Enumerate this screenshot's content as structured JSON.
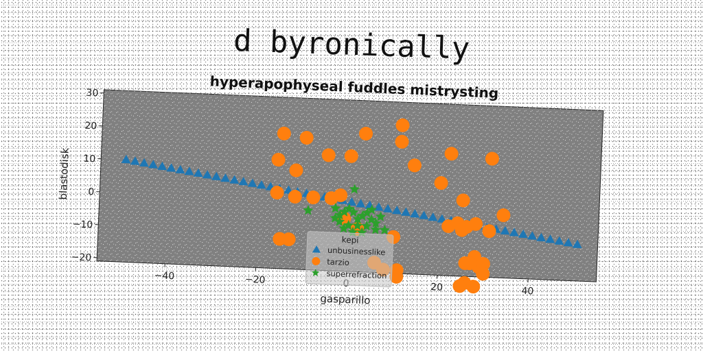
{
  "suptitle": "d byronically",
  "chart_data": {
    "type": "scatter",
    "title": "hyperapophyseal fuddles mistrysting",
    "xlabel": "gasparillo",
    "ylabel": "blastodisk",
    "xlim": [
      -55,
      55
    ],
    "ylim": [
      -21,
      31
    ],
    "xticks": [
      -40,
      -20,
      0,
      20,
      40
    ],
    "yticks": [
      -20,
      -10,
      0,
      10,
      20,
      30
    ],
    "grid": false,
    "plot_background": "#808080",
    "legend": {
      "title": "kepi",
      "placement": "lower-center"
    },
    "series": [
      {
        "name": "unbusinesslike",
        "marker": "triangle",
        "color": "#1f77b4",
        "points": [
          [
            -49.5,
            10.1
          ],
          [
            -47.5,
            9.7
          ],
          [
            -45.5,
            9.3
          ],
          [
            -43.5,
            8.9
          ],
          [
            -41.5,
            8.5
          ],
          [
            -39.5,
            8.1
          ],
          [
            -37.5,
            7.7
          ],
          [
            -35.5,
            7.3
          ],
          [
            -33.5,
            6.9
          ],
          [
            -31.5,
            6.5
          ],
          [
            -29.5,
            6.1
          ],
          [
            -27.5,
            5.7
          ],
          [
            -25.5,
            5.3
          ],
          [
            -23.5,
            4.9
          ],
          [
            -21.5,
            4.5
          ],
          [
            -19.5,
            4.1
          ],
          [
            -17.5,
            3.7
          ],
          [
            -15.5,
            3.3
          ],
          [
            -13.5,
            2.9
          ],
          [
            -11.5,
            2.5
          ],
          [
            -9.5,
            2.1
          ],
          [
            -7.5,
            1.7
          ],
          [
            -5.5,
            1.3
          ],
          [
            -3.5,
            0.9
          ],
          [
            -1.5,
            0.5
          ],
          [
            0.5,
            0.1
          ],
          [
            2.5,
            -0.3
          ],
          [
            4.5,
            -0.7
          ],
          [
            6.5,
            -1.1
          ],
          [
            8.5,
            -1.5
          ],
          [
            10.5,
            -1.9
          ],
          [
            12.5,
            -2.3
          ],
          [
            14.5,
            -2.7
          ],
          [
            16.5,
            -3.1
          ],
          [
            18.5,
            -3.5
          ],
          [
            20.5,
            -3.9
          ],
          [
            22.5,
            -4.3
          ],
          [
            24.5,
            -4.7
          ],
          [
            26.5,
            -5.1
          ],
          [
            28.5,
            -5.5
          ],
          [
            30.5,
            -5.9
          ],
          [
            32.5,
            -6.3
          ],
          [
            34.5,
            -6.7
          ],
          [
            36.5,
            -7.1
          ],
          [
            38.5,
            -7.5
          ],
          [
            40.5,
            -7.9
          ],
          [
            42.5,
            -8.3
          ],
          [
            44.5,
            -8.7
          ],
          [
            46.5,
            -9.1
          ],
          [
            48.5,
            -9.5
          ],
          [
            50.5,
            -9.9
          ]
        ]
      },
      {
        "name": "tarzio",
        "marker": "circle",
        "color": "#ff7f0e",
        "points": [
          [
            -15,
            20
          ],
          [
            -10,
            19
          ],
          [
            -16,
            12
          ],
          [
            -12,
            9
          ],
          [
            -5,
            14
          ],
          [
            0,
            14
          ],
          [
            3,
            21
          ],
          [
            11,
            24
          ],
          [
            11,
            19
          ],
          [
            14,
            12
          ],
          [
            22,
            16
          ],
          [
            31,
            15
          ],
          [
            20,
            7
          ],
          [
            25,
            2
          ],
          [
            34,
            -2
          ],
          [
            -16,
            2
          ],
          [
            -12,
            1
          ],
          [
            -8,
            1
          ],
          [
            -4,
            1
          ],
          [
            -2,
            2
          ],
          [
            22,
            -6
          ],
          [
            24,
            -5
          ],
          [
            25,
            -7
          ],
          [
            26,
            -6
          ],
          [
            28,
            -5
          ],
          [
            31,
            -7
          ],
          [
            -15,
            -12
          ],
          [
            -13,
            -12
          ],
          [
            10,
            -10
          ],
          [
            11,
            -20
          ],
          [
            11,
            -22
          ],
          [
            6,
            -18
          ],
          [
            8,
            -20
          ],
          [
            28,
            -15
          ],
          [
            27,
            -17
          ],
          [
            29,
            -18
          ],
          [
            30,
            -17
          ],
          [
            30,
            -20
          ],
          [
            26,
            -17
          ],
          [
            26,
            -23
          ],
          [
            25,
            -24
          ],
          [
            28,
            -24
          ],
          [
            2,
            -8
          ],
          [
            -1,
            -5
          ]
        ]
      },
      {
        "name": "superrefraction",
        "marker": "star",
        "color": "#2ca02c",
        "points": [
          [
            1,
            4
          ],
          [
            -9,
            -3
          ],
          [
            -3,
            -2
          ],
          [
            -2,
            -4
          ],
          [
            -1,
            -3
          ],
          [
            0,
            -2
          ],
          [
            1,
            -3
          ],
          [
            2,
            -5
          ],
          [
            3,
            -4
          ],
          [
            4,
            -3
          ],
          [
            5,
            -5
          ],
          [
            6,
            -6
          ],
          [
            -2,
            -6
          ],
          [
            0,
            -7
          ],
          [
            2,
            -7
          ],
          [
            4,
            -7
          ],
          [
            6,
            -8
          ],
          [
            3,
            -9
          ],
          [
            -1,
            -8
          ],
          [
            1,
            -9
          ],
          [
            8,
            -8
          ],
          [
            5,
            -2
          ],
          [
            -3,
            -5
          ],
          [
            7,
            -4
          ]
        ]
      }
    ]
  }
}
